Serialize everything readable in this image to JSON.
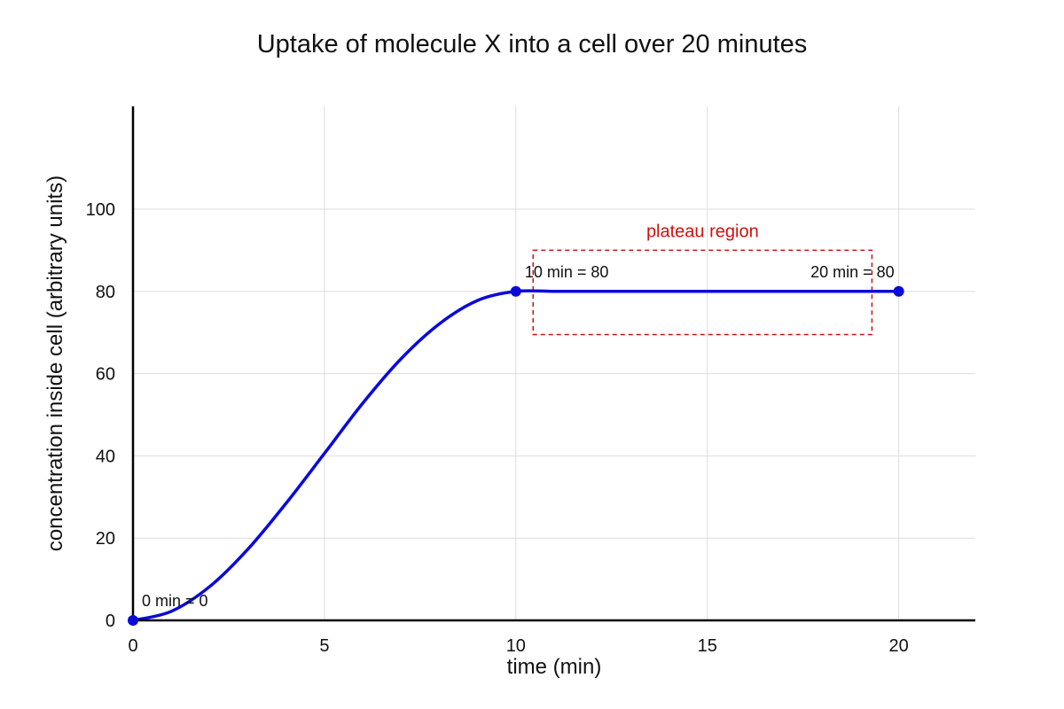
{
  "chart_data": {
    "type": "line",
    "title": "Uptake of molecule X into a cell over 20 minutes",
    "xlabel": "time (min)",
    "ylabel": "concentration inside cell (arbitrary units)",
    "xlim": [
      0,
      22
    ],
    "ylim": [
      0,
      125
    ],
    "x_ticks": [
      0,
      5,
      10,
      15,
      20
    ],
    "y_ticks": [
      0,
      20,
      40,
      60,
      80,
      100
    ],
    "grid": true,
    "legend": "none",
    "series": [
      {
        "color": "#0a0adb",
        "x": [
          0,
          1,
          2,
          3,
          4,
          5,
          6,
          7,
          8,
          9,
          10,
          11,
          12,
          13,
          14,
          15,
          16,
          17,
          18,
          19,
          20
        ],
        "y": [
          0,
          2.2,
          8.2,
          17.3,
          28.5,
          40.6,
          52.8,
          63.6,
          72.1,
          77.8,
          80,
          80,
          80,
          80,
          80,
          80,
          80,
          80,
          80,
          80,
          80
        ]
      }
    ],
    "markers": [
      {
        "x": 0,
        "y": 0,
        "label": "0 min = 0"
      },
      {
        "x": 10,
        "y": 80,
        "label": "10 min = 80"
      },
      {
        "x": 20,
        "y": 80,
        "label": "20 min = 80"
      }
    ],
    "region": {
      "label": "plateau region",
      "x": [
        10.45,
        19.3
      ],
      "y": [
        69.5,
        90
      ],
      "color": "#d01010"
    }
  }
}
